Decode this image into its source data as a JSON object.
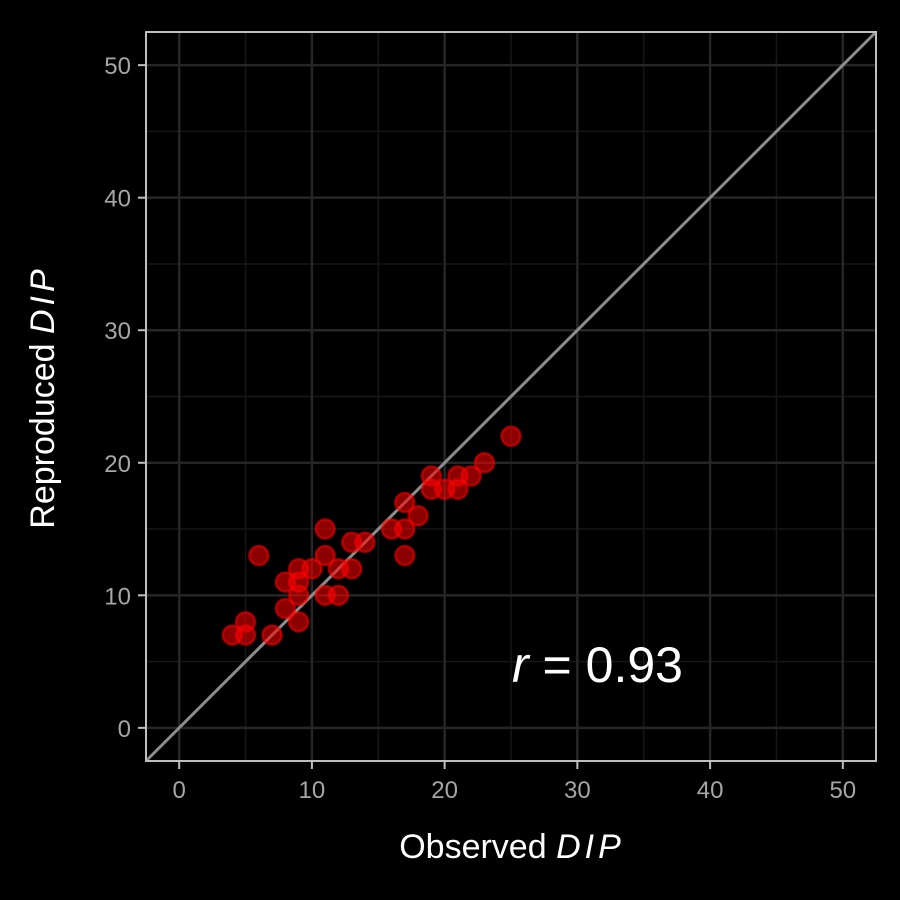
{
  "chart_data": {
    "type": "scatter",
    "title": "",
    "xlabel": "Observed",
    "xlabel_italic": "DIP",
    "ylabel": "Reproduced",
    "ylabel_italic": "DIP",
    "xlim": [
      -2.5,
      52.5
    ],
    "ylim": [
      -2.5,
      52.5
    ],
    "x_ticks": [
      0,
      10,
      20,
      30,
      40,
      50
    ],
    "y_ticks": [
      0,
      10,
      20,
      30,
      40,
      50
    ],
    "x_tick_labels": [
      "0",
      "10",
      "20",
      "30",
      "40",
      "50"
    ],
    "y_tick_labels": [
      "0",
      "10",
      "20",
      "30",
      "40",
      "50"
    ],
    "grid": true,
    "identity_line": true,
    "annotation": {
      "symbol": "r",
      "text": " = 0.93",
      "x": 25,
      "y": 5
    },
    "colors": {
      "background": "#000000",
      "panel": "#000000",
      "grid_major": "#262626",
      "grid_minor": "#171717",
      "points": "#ff0000",
      "identity_line": "#8c8c8c",
      "panel_border": "#bfbfbf"
    },
    "points": [
      {
        "x": 4,
        "y": 7
      },
      {
        "x": 5,
        "y": 7
      },
      {
        "x": 5,
        "y": 8
      },
      {
        "x": 6,
        "y": 13
      },
      {
        "x": 7,
        "y": 7
      },
      {
        "x": 8,
        "y": 9
      },
      {
        "x": 8,
        "y": 11
      },
      {
        "x": 9,
        "y": 8
      },
      {
        "x": 9,
        "y": 10
      },
      {
        "x": 9,
        "y": 11
      },
      {
        "x": 9,
        "y": 12
      },
      {
        "x": 10,
        "y": 12
      },
      {
        "x": 11,
        "y": 10
      },
      {
        "x": 11,
        "y": 13
      },
      {
        "x": 11,
        "y": 15
      },
      {
        "x": 12,
        "y": 10
      },
      {
        "x": 12,
        "y": 12
      },
      {
        "x": 13,
        "y": 12
      },
      {
        "x": 13,
        "y": 14
      },
      {
        "x": 14,
        "y": 14
      },
      {
        "x": 16,
        "y": 15
      },
      {
        "x": 17,
        "y": 13
      },
      {
        "x": 17,
        "y": 15
      },
      {
        "x": 17,
        "y": 17
      },
      {
        "x": 18,
        "y": 16
      },
      {
        "x": 19,
        "y": 18
      },
      {
        "x": 19,
        "y": 19
      },
      {
        "x": 20,
        "y": 18
      },
      {
        "x": 21,
        "y": 18
      },
      {
        "x": 21,
        "y": 19
      },
      {
        "x": 22,
        "y": 19
      },
      {
        "x": 23,
        "y": 20
      },
      {
        "x": 25,
        "y": 22
      }
    ]
  }
}
